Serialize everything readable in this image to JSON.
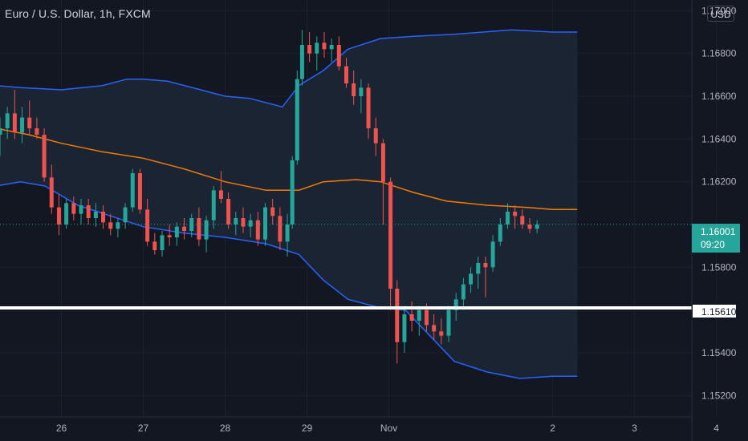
{
  "header": {
    "symbol_title": "Euro / U.S. Dollar, 1h, FXCM",
    "currency_button": "USD"
  },
  "price_tags": {
    "last_price": "1.16001",
    "countdown": "09:20",
    "level": "1.15610"
  },
  "colors": {
    "background": "#131722",
    "bullish": "#26a69a",
    "bearish": "#ef5350",
    "band": "#2962ff",
    "basis": "#f57c00",
    "band_fill": "#1a2433",
    "level_line": "#ffffff",
    "grid": "#1e222d"
  },
  "chart_data": {
    "type": "candlestick",
    "title": "Euro / U.S. Dollar, 1h, FXCM",
    "y_axis": {
      "ticks": [
        "1.15200",
        "1.15400",
        "1.15800",
        "1.16200",
        "1.16400",
        "1.16600",
        "1.16800",
        "1.17000"
      ],
      "range": [
        1.151,
        1.1705
      ]
    },
    "x_axis": {
      "ticks": [
        "26",
        "27",
        "28",
        "29",
        "Nov",
        "2",
        "3",
        "4"
      ],
      "range": [
        25.25,
        33.7
      ]
    },
    "last_price": 1.16001,
    "horizontal_level": 1.1561,
    "indicator": {
      "name": "Bollinger Bands",
      "upper": [
        [
          25.2,
          1.1665
        ],
        [
          25.5,
          1.1664
        ],
        [
          26.0,
          1.1663
        ],
        [
          26.5,
          1.1665
        ],
        [
          26.8,
          1.1668
        ],
        [
          27.0,
          1.1668
        ],
        [
          27.3,
          1.1667
        ],
        [
          27.7,
          1.1663
        ],
        [
          28.0,
          1.166
        ],
        [
          28.3,
          1.1659
        ],
        [
          28.7,
          1.1655
        ],
        [
          28.9,
          1.1665
        ],
        [
          29.2,
          1.1672
        ],
        [
          29.5,
          1.1682
        ],
        [
          29.9,
          1.1687
        ],
        [
          30.3,
          1.1688
        ],
        [
          30.8,
          1.1689
        ],
        [
          31.5,
          1.1691
        ],
        [
          32.0,
          1.169
        ],
        [
          32.3,
          1.169
        ]
      ],
      "basis": [
        [
          25.2,
          1.1645
        ],
        [
          25.6,
          1.1642
        ],
        [
          26.0,
          1.1638
        ],
        [
          26.5,
          1.1634
        ],
        [
          27.0,
          1.1631
        ],
        [
          27.5,
          1.1626
        ],
        [
          28.0,
          1.162
        ],
        [
          28.5,
          1.1616
        ],
        [
          28.9,
          1.1616
        ],
        [
          29.2,
          1.162
        ],
        [
          29.6,
          1.1621
        ],
        [
          29.9,
          1.162
        ],
        [
          30.3,
          1.1615
        ],
        [
          30.7,
          1.1611
        ],
        [
          31.2,
          1.1609
        ],
        [
          31.7,
          1.1608
        ],
        [
          32.0,
          1.1607
        ],
        [
          32.3,
          1.1607
        ]
      ],
      "lower": [
        [
          25.2,
          1.1618
        ],
        [
          25.5,
          1.162
        ],
        [
          25.8,
          1.1618
        ],
        [
          26.2,
          1.1609
        ],
        [
          26.6,
          1.1604
        ],
        [
          27.0,
          1.1599
        ],
        [
          27.5,
          1.1596
        ],
        [
          28.0,
          1.1594
        ],
        [
          28.5,
          1.1591
        ],
        [
          28.9,
          1.1586
        ],
        [
          29.2,
          1.1574
        ],
        [
          29.5,
          1.1565
        ],
        [
          29.9,
          1.1561
        ],
        [
          30.2,
          1.156
        ],
        [
          30.5,
          1.1548
        ],
        [
          30.8,
          1.1536
        ],
        [
          31.2,
          1.1531
        ],
        [
          31.6,
          1.1528
        ],
        [
          32.0,
          1.1529
        ],
        [
          32.3,
          1.1529
        ]
      ]
    },
    "candles_ohlc": [
      [
        25.25,
        1.1642,
        1.165,
        1.1632,
        1.1645
      ],
      [
        25.34,
        1.1645,
        1.1655,
        1.164,
        1.1652
      ],
      [
        25.43,
        1.1652,
        1.1663,
        1.164,
        1.1643
      ],
      [
        25.52,
        1.1643,
        1.1655,
        1.1638,
        1.165
      ],
      [
        25.61,
        1.165,
        1.1658,
        1.1642,
        1.1645
      ],
      [
        25.7,
        1.1645,
        1.165,
        1.164,
        1.1642
      ],
      [
        25.79,
        1.1642,
        1.1645,
        1.162,
        1.1622
      ],
      [
        25.88,
        1.1622,
        1.1628,
        1.1605,
        1.1608
      ],
      [
        25.97,
        1.1608,
        1.1614,
        1.1595,
        1.16
      ],
      [
        26.06,
        1.16,
        1.1612,
        1.1598,
        1.161
      ],
      [
        26.15,
        1.161,
        1.1613,
        1.1602,
        1.1605
      ],
      [
        26.24,
        1.1605,
        1.1612,
        1.16,
        1.1609
      ],
      [
        26.33,
        1.1609,
        1.1612,
        1.16,
        1.1603
      ],
      [
        26.42,
        1.1603,
        1.161,
        1.1599,
        1.1606
      ],
      [
        26.51,
        1.1606,
        1.1609,
        1.1598,
        1.1601
      ],
      [
        26.6,
        1.1601,
        1.1605,
        1.1595,
        1.1598
      ],
      [
        26.69,
        1.1598,
        1.1603,
        1.1594,
        1.1601
      ],
      [
        26.78,
        1.1601,
        1.161,
        1.1598,
        1.1608
      ],
      [
        26.87,
        1.1608,
        1.1626,
        1.1606,
        1.1624
      ],
      [
        26.96,
        1.1624,
        1.1626,
        1.1605,
        1.1607
      ],
      [
        27.05,
        1.1607,
        1.1612,
        1.159,
        1.1592
      ],
      [
        27.14,
        1.1592,
        1.1596,
        1.1586,
        1.1588
      ],
      [
        27.23,
        1.1588,
        1.1597,
        1.1585,
        1.1595
      ],
      [
        27.32,
        1.1595,
        1.16,
        1.159,
        1.1594
      ],
      [
        27.41,
        1.1594,
        1.1601,
        1.159,
        1.1599
      ],
      [
        27.5,
        1.1599,
        1.1603,
        1.1593,
        1.1597
      ],
      [
        27.59,
        1.1597,
        1.1605,
        1.1594,
        1.1603
      ],
      [
        27.68,
        1.1603,
        1.1608,
        1.159,
        1.1593
      ],
      [
        27.77,
        1.1593,
        1.1604,
        1.1587,
        1.1602
      ],
      [
        27.86,
        1.1602,
        1.1618,
        1.1598,
        1.1616
      ],
      [
        27.95,
        1.1616,
        1.1625,
        1.161,
        1.1612
      ],
      [
        28.04,
        1.1612,
        1.1615,
        1.1598,
        1.16
      ],
      [
        28.13,
        1.16,
        1.1606,
        1.1595,
        1.1603
      ],
      [
        28.22,
        1.1603,
        1.1608,
        1.1596,
        1.1599
      ],
      [
        28.31,
        1.1599,
        1.1605,
        1.1594,
        1.1602
      ],
      [
        28.4,
        1.1602,
        1.1606,
        1.159,
        1.1593
      ],
      [
        28.49,
        1.1593,
        1.161,
        1.159,
        1.1608
      ],
      [
        28.58,
        1.1608,
        1.1612,
        1.16,
        1.1604
      ],
      [
        28.67,
        1.1604,
        1.1608,
        1.1588,
        1.1592
      ],
      [
        28.76,
        1.1592,
        1.1605,
        1.1585,
        1.16
      ],
      [
        28.82,
        1.16,
        1.1632,
        1.1598,
        1.163
      ],
      [
        28.88,
        1.163,
        1.1672,
        1.1628,
        1.1668
      ],
      [
        28.94,
        1.1668,
        1.1691,
        1.1665,
        1.1684
      ],
      [
        29.03,
        1.1684,
        1.169,
        1.1676,
        1.168
      ],
      [
        29.12,
        1.168,
        1.1688,
        1.1672,
        1.1685
      ],
      [
        29.21,
        1.1685,
        1.169,
        1.1678,
        1.1682
      ],
      [
        29.3,
        1.1682,
        1.1687,
        1.1676,
        1.1684
      ],
      [
        29.39,
        1.1684,
        1.1688,
        1.1672,
        1.1674
      ],
      [
        29.48,
        1.1674,
        1.1678,
        1.1664,
        1.1666
      ],
      [
        29.57,
        1.1666,
        1.1672,
        1.1656,
        1.166
      ],
      [
        29.66,
        1.166,
        1.1668,
        1.1652,
        1.1664
      ],
      [
        29.75,
        1.1664,
        1.1666,
        1.164,
        1.1645
      ],
      [
        29.84,
        1.1645,
        1.165,
        1.1632,
        1.1638
      ],
      [
        29.93,
        1.1638,
        1.164,
        1.16,
        1.162
      ],
      [
        30.02,
        1.162,
        1.1622,
        1.156,
        1.157
      ],
      [
        30.1,
        1.157,
        1.1574,
        1.1535,
        1.1545
      ],
      [
        30.19,
        1.1545,
        1.1562,
        1.154,
        1.1558
      ],
      [
        30.28,
        1.1558,
        1.1564,
        1.155,
        1.1555
      ],
      [
        30.37,
        1.1555,
        1.1562,
        1.1548,
        1.156
      ],
      [
        30.46,
        1.156,
        1.1563,
        1.155,
        1.1553
      ],
      [
        30.55,
        1.1553,
        1.1558,
        1.1546,
        1.155
      ],
      [
        30.64,
        1.155,
        1.1556,
        1.1544,
        1.1548
      ],
      [
        30.73,
        1.1548,
        1.1562,
        1.1545,
        1.156
      ],
      [
        30.82,
        1.156,
        1.1568,
        1.1555,
        1.1565
      ],
      [
        30.91,
        1.1565,
        1.1575,
        1.156,
        1.1572
      ],
      [
        31.0,
        1.1572,
        1.158,
        1.1568,
        1.1577
      ],
      [
        31.09,
        1.1577,
        1.1585,
        1.157,
        1.1582
      ],
      [
        31.18,
        1.1582,
        1.1585,
        1.1566,
        1.158
      ],
      [
        31.27,
        1.158,
        1.1595,
        1.1578,
        1.1592
      ],
      [
        31.36,
        1.1592,
        1.1603,
        1.159,
        1.16
      ],
      [
        31.45,
        1.16,
        1.161,
        1.1598,
        1.1606
      ],
      [
        31.54,
        1.1606,
        1.1609,
        1.1598,
        1.1604
      ],
      [
        31.63,
        1.1604,
        1.1607,
        1.1598,
        1.16
      ],
      [
        31.72,
        1.16,
        1.1603,
        1.1596,
        1.1598
      ],
      [
        31.81,
        1.1598,
        1.1602,
        1.1596,
        1.16
      ]
    ]
  }
}
